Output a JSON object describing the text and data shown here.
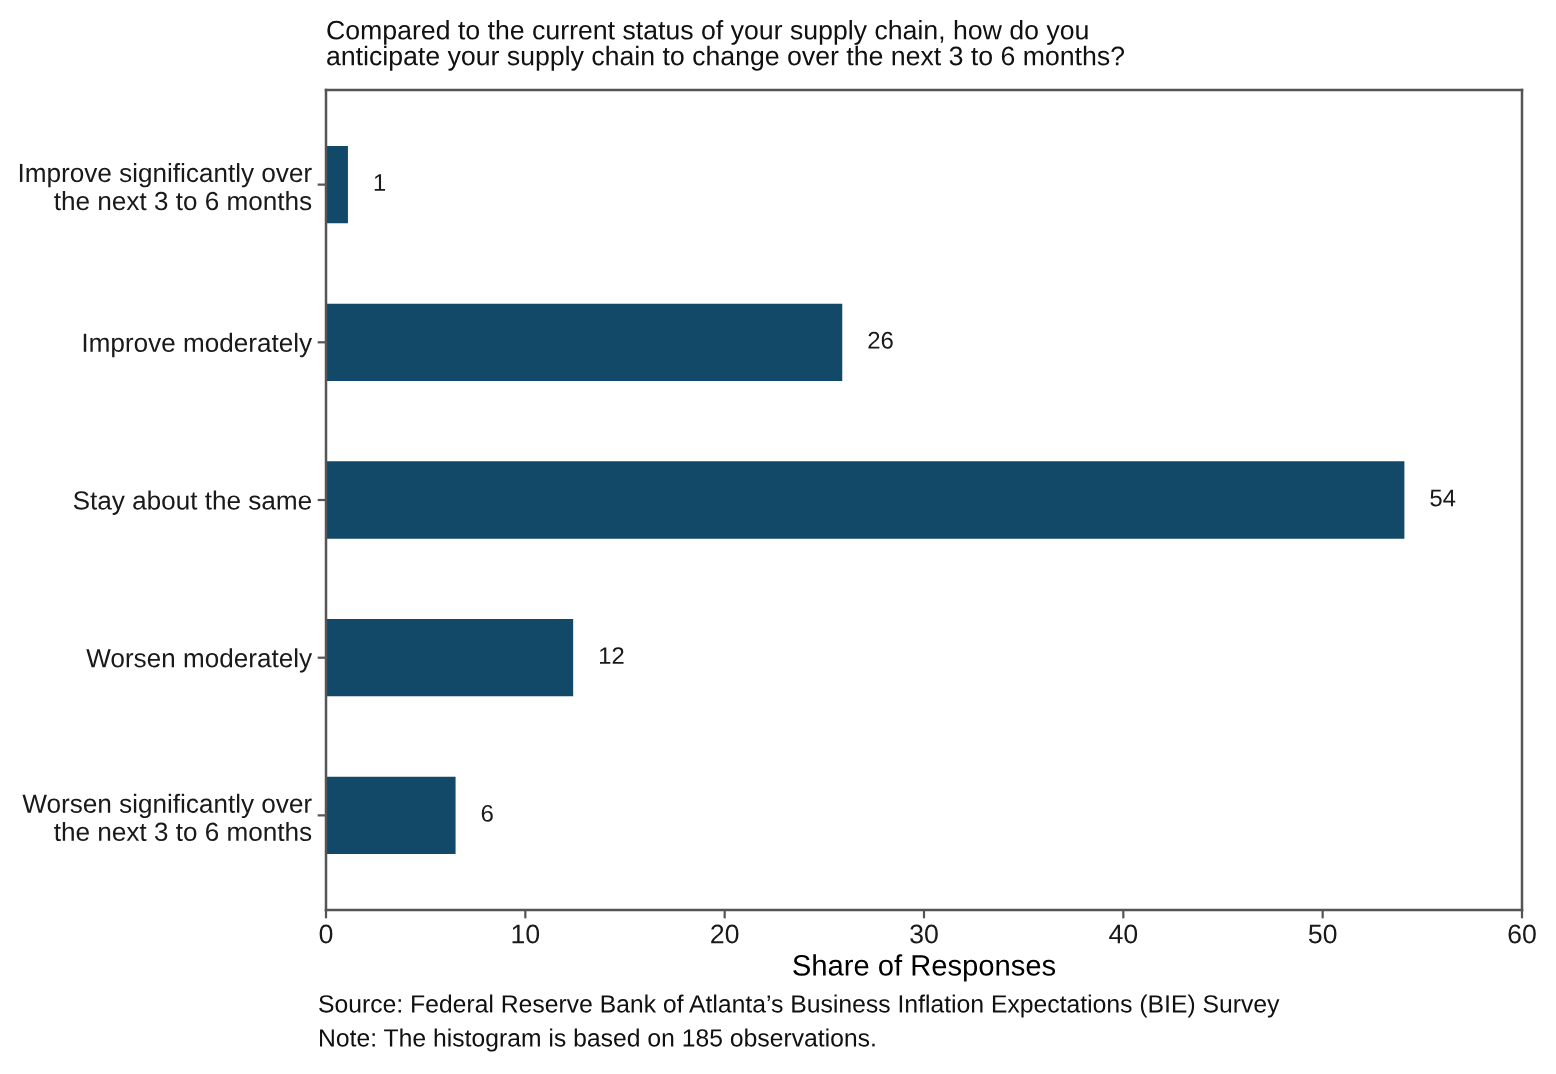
{
  "chart_data": {
    "type": "bar",
    "orientation": "horizontal",
    "title": "Compared to the current status of your supply chain, how do you\nanticipate your supply chain to change over the next 3 to 6 months?",
    "xlabel": "Share of Responses",
    "categories": [
      "Improve significantly over\nthe next 3 to 6 months",
      "Improve moderately",
      "Stay about the same",
      "Worsen moderately",
      "Worsen significantly over\nthe next 3 to 6 months"
    ],
    "values": [
      1.1,
      25.9,
      54.1,
      12.4,
      6.5
    ],
    "value_labels": [
      "1",
      "26",
      "54",
      "12",
      "6"
    ],
    "color": "#124868",
    "xlim": [
      0,
      60
    ],
    "xticks": [
      0,
      10,
      20,
      30,
      40,
      50,
      60
    ],
    "grid": false,
    "legend": false,
    "annotations": [
      "Source: Federal Reserve Bank of Atlanta’s Business Inflation Expectations (BIE) Survey",
      "Note: The histogram is based on 185 observations."
    ]
  }
}
